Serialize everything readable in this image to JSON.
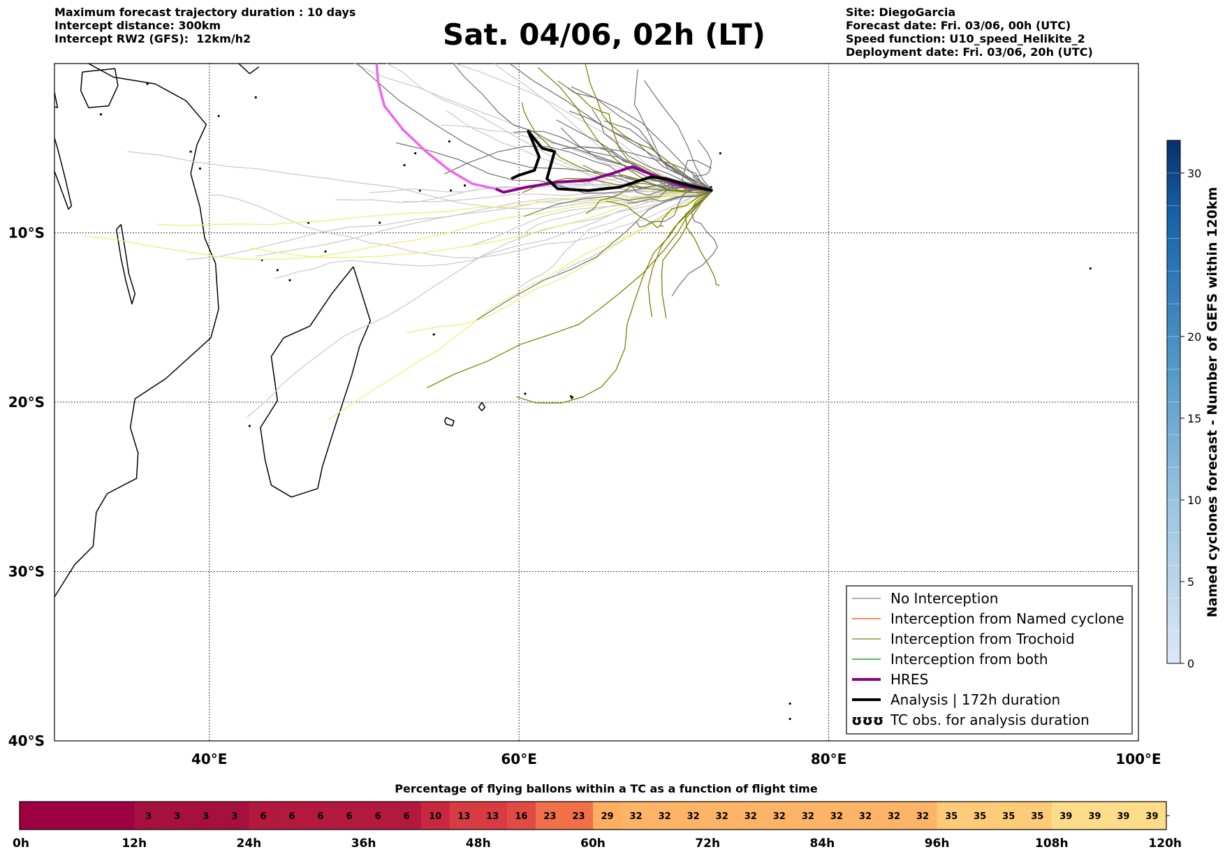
{
  "header": {
    "left": [
      "Maximum forecast trajectory duration : 10 days",
      "Intercept distance: 300km",
      "Intercept RW2 (GFS):  12km/h2"
    ],
    "right": [
      "Site: DiegoGarcia",
      "Forecast date: Fri. 03/06, 00h (UTC)",
      "Speed function: U10_speed_Helikite_2",
      "Deployment date: Fri. 03/06, 20h (UTC)"
    ],
    "title": "Sat. 04/06, 02h (LT)"
  },
  "map": {
    "lon_range": [
      30,
      100
    ],
    "lat_range": [
      -40,
      0
    ],
    "lon_ticks": [
      {
        "value": 40,
        "label": "40°E"
      },
      {
        "value": 60,
        "label": "60°E"
      },
      {
        "value": 80,
        "label": "80°E"
      },
      {
        "value": 100,
        "label": "100°E"
      }
    ],
    "lat_ticks": [
      {
        "value": -10,
        "label": "10°S"
      },
      {
        "value": -20,
        "label": "20°S"
      },
      {
        "value": -30,
        "label": "30°S"
      },
      {
        "value": -40,
        "label": "40°S"
      }
    ],
    "land_outline_color": "#000000"
  },
  "trajectories": {
    "light_gray": {
      "color": "#cccccc",
      "count": 22
    },
    "dark_gray": {
      "color": "#6e6e6e",
      "count": 26
    },
    "olive": {
      "color": "#808000",
      "count": 12
    },
    "yellow": {
      "color": "#eeee77",
      "count": 5
    },
    "hres": {
      "color": "#8b008b",
      "fade_color": "#ee66ee",
      "points": [
        [
          72.5,
          -7.5
        ],
        [
          70.5,
          -7.2
        ],
        [
          69,
          -6.7
        ],
        [
          67.3,
          -6.1
        ],
        [
          66,
          -6.5
        ],
        [
          64.5,
          -6.9
        ],
        [
          62.5,
          -7.0
        ],
        [
          60.5,
          -7.3
        ],
        [
          59,
          -7.6
        ],
        [
          58.5,
          -7.4
        ],
        [
          57,
          -7.1
        ],
        [
          55.5,
          -6.3
        ],
        [
          54,
          -5.2
        ],
        [
          52.5,
          -3.9
        ],
        [
          51.3,
          -2.5
        ],
        [
          50.9,
          -1.1
        ],
        [
          50.8,
          0
        ]
      ]
    },
    "analysis": {
      "color": "#000000",
      "points": [
        [
          72.5,
          -7.5
        ],
        [
          71,
          -7.2
        ],
        [
          69.5,
          -6.8
        ],
        [
          68.5,
          -6.7
        ],
        [
          67.5,
          -7.0
        ],
        [
          66.5,
          -7.3
        ],
        [
          64.5,
          -7.5
        ],
        [
          62.5,
          -7.4
        ],
        [
          61.8,
          -6.8
        ],
        [
          62.3,
          -5.2
        ],
        [
          61.5,
          -5.0
        ],
        [
          60.6,
          -4.0
        ],
        [
          61.3,
          -5.5
        ],
        [
          61,
          -6.3
        ],
        [
          60,
          -6.6
        ],
        [
          59.5,
          -6.8
        ]
      ]
    }
  },
  "legend": {
    "items": [
      {
        "label": "No Interception",
        "color": "#808080",
        "width": 1.2
      },
      {
        "label": "Interception from Named cyclone",
        "color": "#ff4500",
        "width": 1.2
      },
      {
        "label": "Interception from Trochoid",
        "color": "#808000",
        "width": 1.2
      },
      {
        "label": "Interception from both",
        "color": "#008000",
        "width": 1.2
      },
      {
        "label": "HRES",
        "color": "#8b008b",
        "width": 4
      },
      {
        "label": "Analysis | 172h duration",
        "color": "#000000",
        "width": 4
      },
      {
        "label": "TC obs. for analysis duration",
        "symbol": "ʊʊʊ"
      }
    ]
  },
  "colorbar": {
    "title": "Named cyclones forecast - Number of GEFS within 120km",
    "min": 0,
    "max": 32,
    "ticks": [
      0,
      5,
      10,
      15,
      20,
      30
    ],
    "color_low": "#dce8f7",
    "color_high": "#08306b"
  },
  "balloon_bar": {
    "title": "Percentage of flying ballons within a TC as a function of flight time",
    "values": [
      0,
      0,
      0,
      0,
      3,
      3,
      3,
      3,
      6,
      6,
      6,
      6,
      6,
      6,
      10,
      13,
      13,
      16,
      23,
      23,
      29,
      32,
      32,
      32,
      32,
      32,
      32,
      32,
      32,
      32,
      32,
      32,
      35,
      35,
      35,
      35,
      39,
      39,
      39,
      39
    ],
    "time_labels": [
      "0h",
      "12h",
      "24h",
      "36h",
      "48h",
      "60h",
      "72h",
      "84h",
      "96h",
      "108h",
      "120h"
    ],
    "max_hours": 120,
    "colors": {
      "0": "#9e0142",
      "3": "#a6103f",
      "6": "#b3193f",
      "10": "#c8283f",
      "13": "#d63c42",
      "16": "#e04b44",
      "23": "#f07048",
      "29": "#fdae61",
      "32": "#fdb466",
      "35": "#fecb78",
      "39": "#fedd8a"
    }
  }
}
